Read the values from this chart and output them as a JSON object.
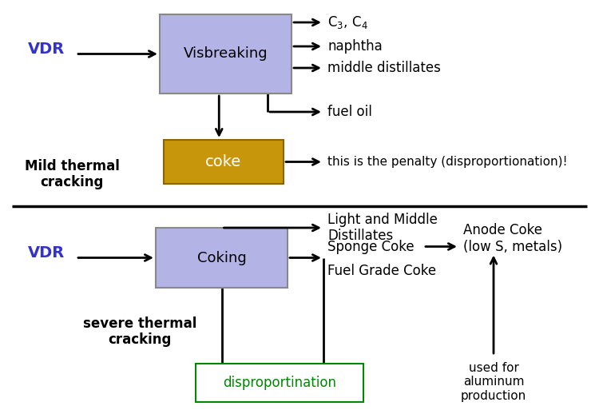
{
  "bg_color": "#ffffff",
  "vdr_color": "#3333cc",
  "box_fill_visbreaking": "#b3b3e6",
  "box_edge_visbreaking": "#888888",
  "box_fill_coke": "#c8960a",
  "box_edge_coke": "#8a6500",
  "box_fill_coking": "#b3b3e6",
  "box_edge_coking": "#888888",
  "box_fill_disprop": "#ffffff",
  "box_edge_disprop": "#008800",
  "disprop_text_color": "#008800",
  "arrow_color": "#000000",
  "text_color": "#000000",
  "mild_cracking_text": "Mild thermal\ncracking",
  "severe_cracking_text": "severe thermal\ncracking",
  "visbreaking_label": "Visbreaking",
  "coking_label": "Coking",
  "coke_label": "coke",
  "vdr_label": "VDR",
  "c3c4_label": "C$_3$, C$_4$",
  "naphtha_label": "naphtha",
  "middle_label": "middle distillates",
  "fuel_label": "fuel oil",
  "coke_note": "this is the penalty (disproportionation)!",
  "lmd_label": "Light and Middle\nDistillates",
  "sponge_label": "Sponge Coke",
  "fuel_grade_label": "Fuel Grade Coke",
  "anode_coke_label": "Anode Coke\n(low S, metals)",
  "anode_coke_note": "used for\naluminum\nproduction",
  "disprop_label": "disproportination"
}
